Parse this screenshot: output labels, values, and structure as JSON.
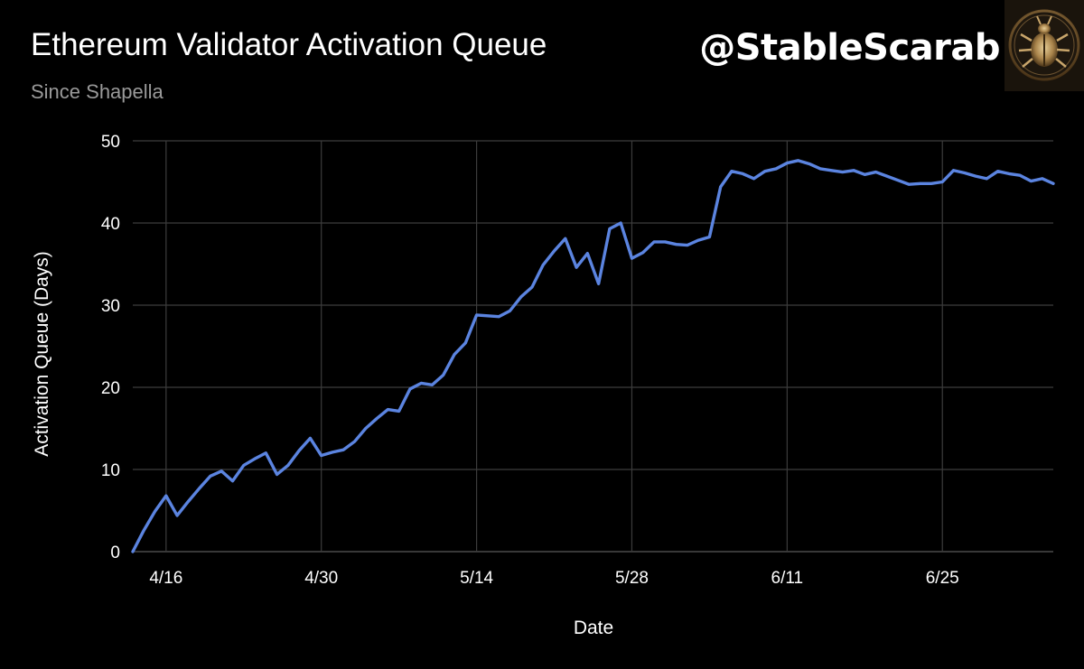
{
  "header": {
    "title": "Ethereum Validator Activation Queue",
    "subtitle": "Since Shapella",
    "handle": "@StableScarab"
  },
  "colors": {
    "background": "#000000",
    "line": "#5b84e0",
    "grid": "#3c3c3c",
    "text": "#ffffff",
    "subtitle": "#9a9a9a"
  },
  "chart_data": {
    "type": "line",
    "title": "Ethereum Validator Activation Queue",
    "subtitle": "Since Shapella",
    "xlabel": "Date",
    "ylabel": "Activation Queue (Days)",
    "ylim": [
      0,
      50
    ],
    "y_ticks": [
      0,
      10,
      20,
      30,
      40,
      50
    ],
    "x_tick_labels": [
      "4/16",
      "4/30",
      "5/14",
      "5/28",
      "6/11",
      "6/25"
    ],
    "x_tick_days": [
      3,
      17,
      31,
      45,
      59,
      73
    ],
    "x_range_days": [
      0,
      83
    ],
    "grid": true,
    "legend": "none",
    "series": [
      {
        "values": [
          0,
          2.6,
          4.9,
          6.8,
          4.4,
          6.1,
          7.7,
          9.2,
          9.8,
          8.6,
          10.5,
          11.3,
          12.0,
          9.4,
          10.5,
          12.3,
          13.8,
          11.7,
          12.1,
          12.4,
          13.4,
          15.0,
          16.2,
          17.3,
          17.1,
          19.8,
          20.5,
          20.3,
          21.5,
          24.0,
          25.4,
          28.8,
          28.7,
          28.6,
          29.3,
          31.0,
          32.2,
          34.9,
          36.6,
          38.1,
          34.6,
          36.3,
          32.6,
          39.3,
          40.0,
          35.7,
          36.4,
          37.7,
          37.7,
          37.4,
          37.3,
          37.9,
          38.3,
          44.4,
          46.3,
          46.0,
          45.4,
          46.3,
          46.6,
          47.3,
          47.6,
          47.2,
          46.6,
          46.4,
          46.2,
          46.4,
          45.9,
          46.2,
          45.7,
          45.2,
          44.7,
          44.8,
          44.8,
          45.0,
          46.4,
          46.1,
          45.7,
          45.4,
          46.3,
          46.0,
          45.8,
          45.1,
          45.4,
          44.8
        ]
      }
    ]
  }
}
